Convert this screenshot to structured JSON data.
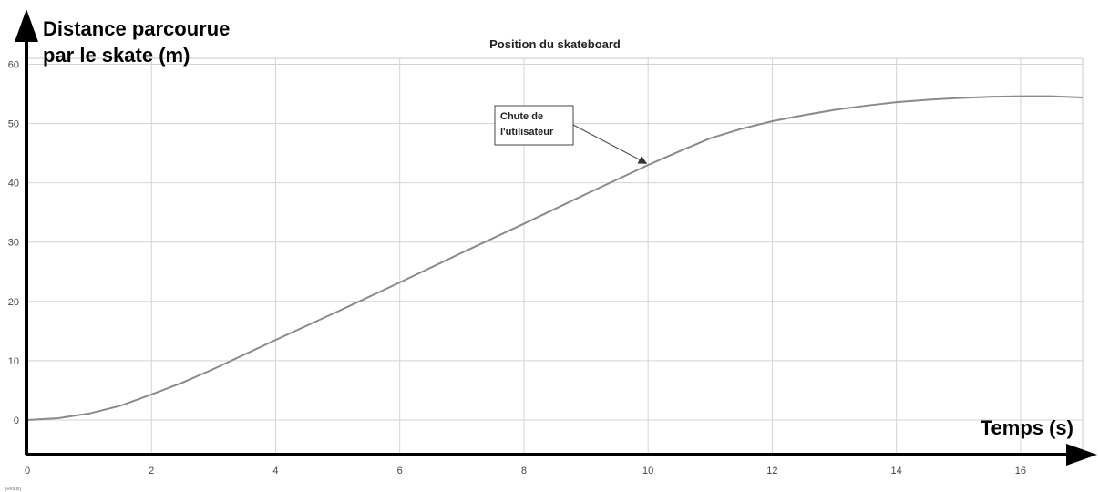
{
  "chart_data": {
    "type": "line",
    "title": "Position du skateboard",
    "ylabel_line1": "Distance parcourue",
    "ylabel_line2": "par le skate (m)",
    "xlabel": "Temps (s)",
    "bottom_left_text": "[Result]",
    "xlim": [
      0,
      17
    ],
    "ylim": [
      -6,
      61
    ],
    "x_ticks": [
      0,
      2,
      4,
      6,
      8,
      10,
      12,
      14,
      16
    ],
    "y_ticks": [
      0,
      10,
      20,
      30,
      40,
      50,
      60
    ],
    "grid": true,
    "series": [
      {
        "color": "#8a8a8a",
        "x": [
          0,
          0.5,
          1,
          1.5,
          2,
          2.5,
          3,
          4,
          5,
          6,
          7,
          8,
          9,
          10,
          10.5,
          11,
          11.5,
          12,
          12.5,
          13,
          13.5,
          14,
          14.5,
          15,
          15.5,
          16,
          16.5,
          17
        ],
        "y": [
          0,
          0.3,
          1.1,
          2.4,
          4.3,
          6.3,
          8.6,
          13.5,
          18.3,
          23.2,
          28.2,
          33.1,
          38.1,
          43.0,
          45.3,
          47.5,
          49.1,
          50.4,
          51.4,
          52.3,
          53.0,
          53.6,
          54.0,
          54.3,
          54.5,
          54.6,
          54.6,
          54.4
        ]
      }
    ],
    "annotation": {
      "line1": "Chute de",
      "line2": "l'utilisateur",
      "target_x": 10.0,
      "target_y": 43.0
    },
    "colors": {
      "line": "#8a8a8a",
      "grid": "#d3d3d3",
      "axis": "#000000"
    }
  }
}
